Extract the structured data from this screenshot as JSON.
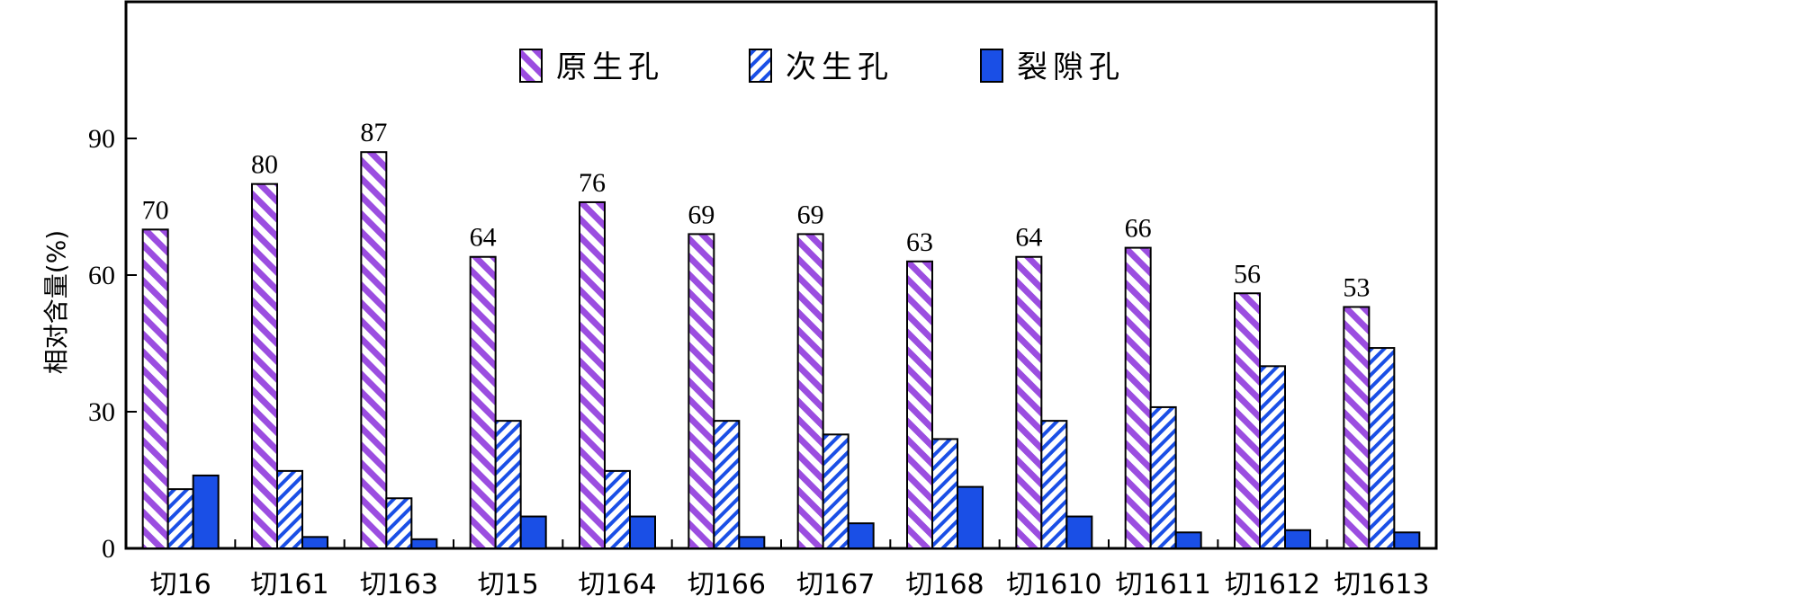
{
  "chart_data": {
    "type": "bar",
    "title": "",
    "xlabel": "",
    "ylabel": "相对含量(%)",
    "ylim": [
      0,
      120
    ],
    "yticks": [
      0,
      30,
      60,
      90
    ],
    "grid": false,
    "legend_position": "top-center",
    "categories": [
      "切16",
      "切161",
      "切163",
      "切15",
      "切164",
      "切166",
      "切167",
      "切168",
      "切1610",
      "切1611",
      "切1612",
      "切1613"
    ],
    "series": [
      {
        "name": "原生孔",
        "pattern": "diagonal-stripes",
        "color": "#9b4de0",
        "values": [
          70,
          80,
          87,
          64,
          76,
          69,
          69,
          63,
          64,
          66,
          56,
          53
        ],
        "labeled": true
      },
      {
        "name": "次生孔",
        "pattern": "back-diagonal-stripes",
        "color": "#1a4fe6",
        "values": [
          13,
          17,
          11,
          28,
          17,
          28,
          25,
          24,
          28,
          31,
          40,
          44
        ],
        "labeled": false
      },
      {
        "name": "裂隙孔",
        "pattern": "solid",
        "color": "#1a4fe6",
        "values": [
          16,
          2.5,
          2,
          7,
          7,
          2.5,
          5.5,
          13.5,
          7,
          3.5,
          4,
          3.5
        ],
        "labeled": false
      }
    ],
    "data_labels": [
      "70",
      "80",
      "87",
      "64",
      "76",
      "69",
      "69",
      "63",
      "64",
      "66",
      "56",
      "53"
    ]
  }
}
